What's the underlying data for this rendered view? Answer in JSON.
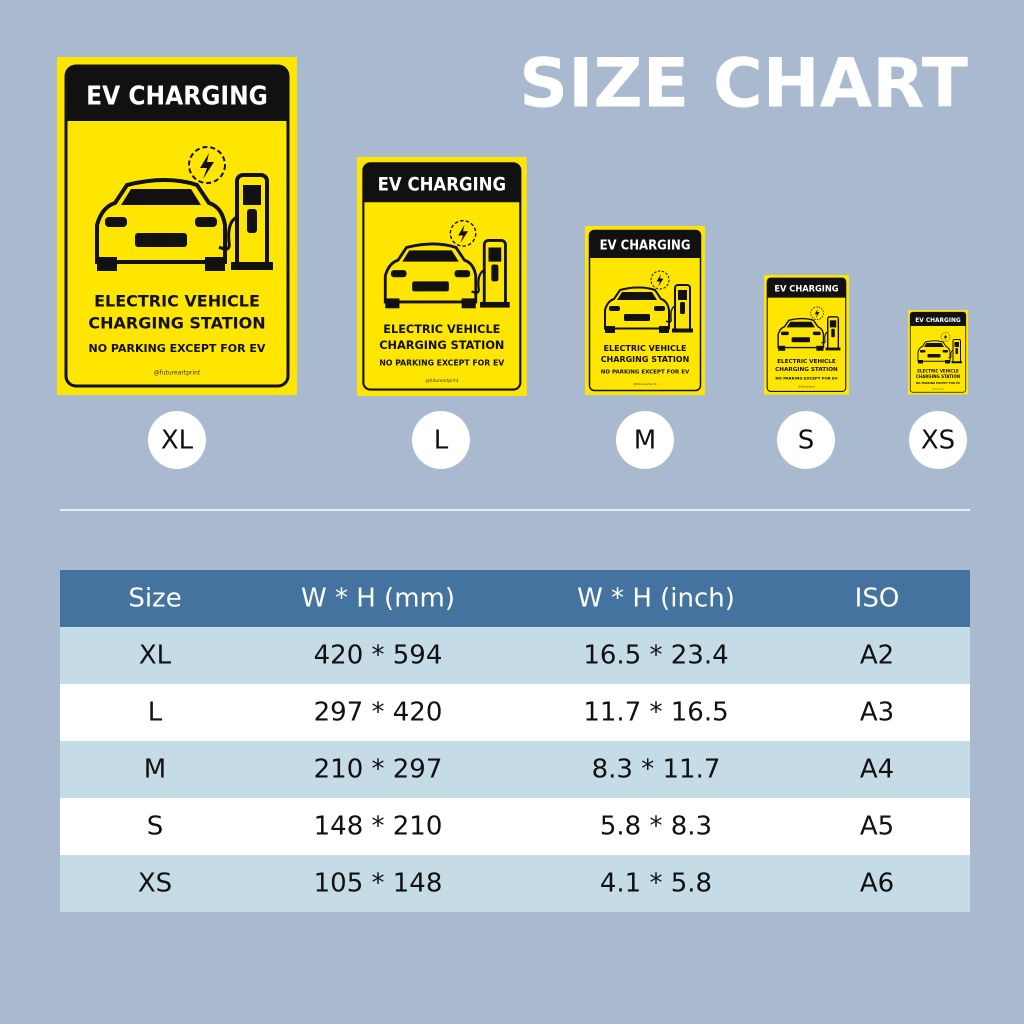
{
  "header": {
    "title": "SIZE CHART"
  },
  "sign": {
    "header": "EV CHARGING",
    "line1": "ELECTRIC VEHICLE",
    "line2": "CHARGING STATION",
    "line3": "NO PARKING EXCEPT FOR EV",
    "credit": "@futureartprint"
  },
  "sizes": [
    "XL",
    "L",
    "M",
    "S",
    "XS"
  ],
  "table": {
    "headers": [
      "Size",
      "W * H (mm)",
      "W * H (inch)",
      "ISO"
    ],
    "rows": [
      [
        "XL",
        "420 * 594",
        "16.5 * 23.4",
        "A2"
      ],
      [
        "L",
        "297 * 420",
        "11.7 * 16.5",
        "A3"
      ],
      [
        "M",
        "210 * 297",
        "8.3 * 11.7",
        "A4"
      ],
      [
        "S",
        "148 * 210",
        "5.8 * 8.3",
        "A5"
      ],
      [
        "XS",
        "105 * 148",
        "4.1 * 5.8",
        "A6"
      ]
    ]
  }
}
